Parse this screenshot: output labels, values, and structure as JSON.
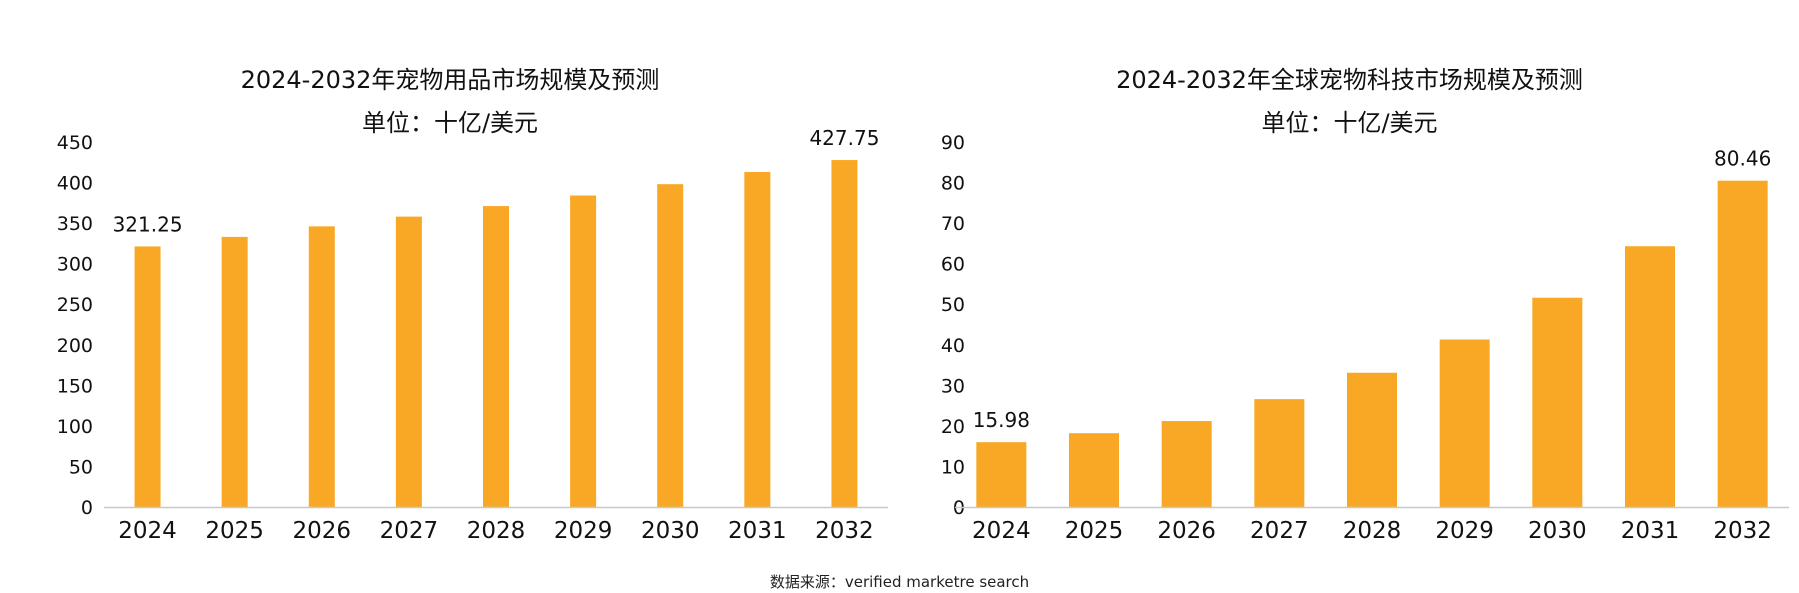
{
  "colors": {
    "bar": "#F9A825",
    "axis": "#C8C8C8",
    "text": "#111111"
  },
  "chart_data": [
    {
      "type": "bar",
      "title": "2024-2032年宠物用品市场规模及预测",
      "subtitle": "单位：十亿/美元",
      "categories": [
        "2024",
        "2025",
        "2026",
        "2027",
        "2028",
        "2029",
        "2030",
        "2031",
        "2032"
      ],
      "values": [
        321.25,
        333,
        346,
        358,
        371,
        384,
        398,
        413,
        427.75
      ],
      "data_labels": {
        "2024": "321.25",
        "2032": "427.75"
      },
      "ylim": [
        0,
        450
      ],
      "yticks": [
        0,
        50,
        100,
        150,
        200,
        250,
        300,
        350,
        400,
        450
      ],
      "grid": false,
      "legend": "none"
    },
    {
      "type": "bar",
      "title": "2024-2032年全球宠物科技市场规模及预测",
      "subtitle": "单位：十亿/美元",
      "categories": [
        "2024",
        "2025",
        "2026",
        "2027",
        "2028",
        "2029",
        "2030",
        "2031",
        "2032"
      ],
      "values": [
        15.98,
        18.2,
        21.2,
        26.6,
        33.1,
        41.3,
        51.6,
        64.3,
        80.46
      ],
      "data_labels": {
        "2024": "15.98",
        "2032": "80.46"
      },
      "ylim": [
        0,
        90
      ],
      "yticks": [
        0,
        10,
        20,
        30,
        40,
        50,
        60,
        70,
        80,
        90
      ],
      "grid": false,
      "legend": "none"
    }
  ],
  "source_note": "数据来源：verified marketre search"
}
